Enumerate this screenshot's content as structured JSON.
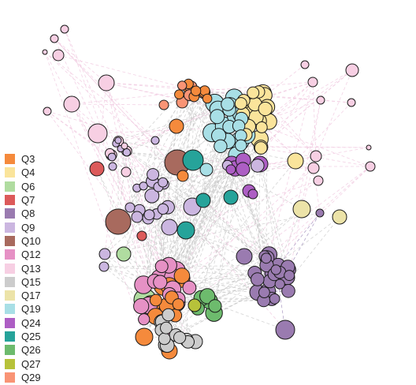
{
  "legend": {
    "items": [
      {
        "label": "Q3",
        "color": "#f58a3c"
      },
      {
        "label": "Q4",
        "color": "#fae49b"
      },
      {
        "label": "Q6",
        "color": "#b0dca0"
      },
      {
        "label": "Q7",
        "color": "#dc5a5a"
      },
      {
        "label": "Q8",
        "color": "#9a7bb0"
      },
      {
        "label": "Q9",
        "color": "#cbb6e0"
      },
      {
        "label": "Q10",
        "color": "#a86a5e"
      },
      {
        "label": "Q12",
        "color": "#e691c5"
      },
      {
        "label": "Q13",
        "color": "#f7cfe3"
      },
      {
        "label": "Q15",
        "color": "#cccccc"
      },
      {
        "label": "Q17",
        "color": "#ece3a8"
      },
      {
        "label": "Q19",
        "color": "#a8dfe6"
      },
      {
        "label": "Q24",
        "color": "#ad5ec4"
      },
      {
        "label": "Q25",
        "color": "#26a39a"
      },
      {
        "label": "Q26",
        "color": "#6dbb6d"
      },
      {
        "label": "Q27",
        "color": "#b7c23a"
      },
      {
        "label": "Q29",
        "color": "#f99475"
      }
    ]
  }
}
